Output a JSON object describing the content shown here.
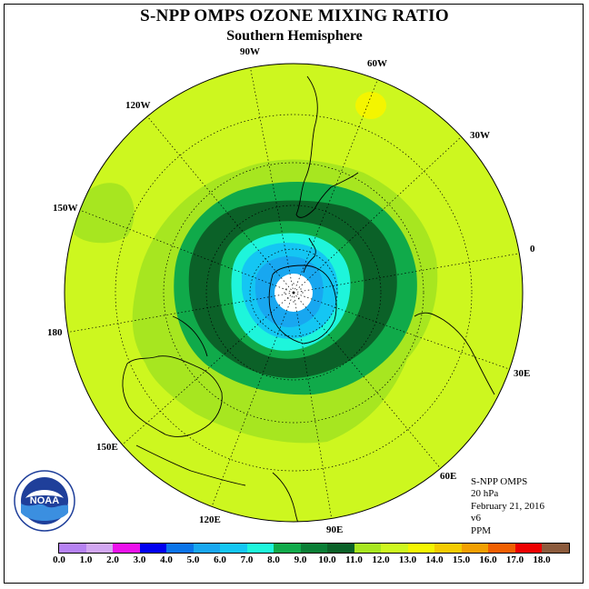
{
  "title": "S-NPP OMPS OZONE MIXING RATIO",
  "subtitle": "Southern Hemisphere",
  "longitude_labels": {
    "w90": "90W",
    "w60": "60W",
    "w120": "120W",
    "w30": "30W",
    "w150": "150W",
    "e0": "0",
    "d180": "180",
    "e30": "30E",
    "e150": "150E",
    "e60": "60E",
    "e120": "120E",
    "e90": "90E"
  },
  "info": {
    "instrument": "S-NPP OMPS",
    "level": "20 hPa",
    "date": "February 21, 2016",
    "version": "v6",
    "units": "PPM"
  },
  "logo": {
    "text": "NOAA",
    "icon": "noaa-logo"
  },
  "colorbar": {
    "colors": [
      "#b682f2",
      "#d2a7f2",
      "#ec11ec",
      "#0000f0",
      "#0b74e9",
      "#18a7f0",
      "#14c6f3",
      "#1ef5db",
      "#10aa4a",
      "#0a7e35",
      "#0b6128",
      "#a7e620",
      "#cdf71f",
      "#f4f500",
      "#f4cb00",
      "#f29f00",
      "#f05f00",
      "#ee0000",
      "#8b5a3c"
    ],
    "ticks": [
      "0.0",
      "1.0",
      "2.0",
      "3.0",
      "4.0",
      "5.0",
      "6.0",
      "7.0",
      "8.0",
      "9.0",
      "10.0",
      "11.0",
      "12.0",
      "13.0",
      "14.0",
      "15.0",
      "16.0",
      "17.0",
      "18.0"
    ]
  },
  "map_colors": {
    "background": "#cdf71f",
    "band_11": "#a7e620",
    "band_9": "#10aa4a",
    "band_10": "#0b6128",
    "band_8": "#1ef5db",
    "band_7": "#14c6f3",
    "band_6": "#18a7f0",
    "band_13": "#f4f500",
    "polar_gap": "#ffffff"
  }
}
